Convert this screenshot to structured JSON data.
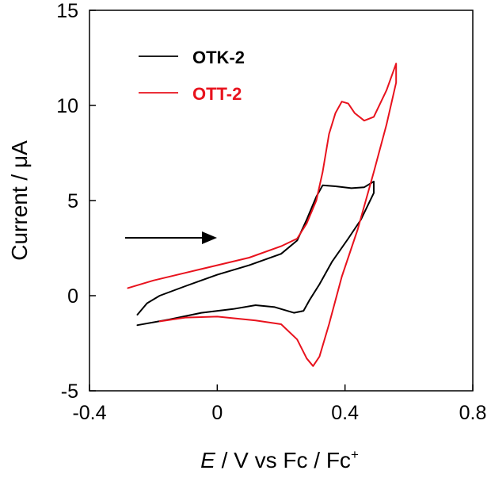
{
  "chart_data": {
    "type": "line",
    "title": "",
    "xlabel": {
      "italic": "E",
      "rest": " / V vs  Fc / Fc",
      "sup": "+"
    },
    "ylabel": "Current / μA",
    "xlim": [
      -0.4,
      0.8
    ],
    "ylim": [
      -5,
      15
    ],
    "xticks": [
      -0.4,
      0,
      0.4,
      0.8
    ],
    "xtick_labels": [
      "-0.4",
      "0",
      "0.4",
      "0.8"
    ],
    "yticks": [
      -5,
      0,
      5,
      10,
      15
    ],
    "ytick_labels": [
      "-5",
      "0",
      "5",
      "10",
      "15"
    ],
    "grid": false,
    "legend_position": "top-left",
    "annotation": "arrow pointing right (scan direction)",
    "series": [
      {
        "name": "OTK-2",
        "color": "#000000",
        "points": [
          [
            -0.25,
            -1.0
          ],
          [
            -0.22,
            -0.4
          ],
          [
            -0.18,
            0.0
          ],
          [
            -0.1,
            0.5
          ],
          [
            0.0,
            1.1
          ],
          [
            0.1,
            1.6
          ],
          [
            0.2,
            2.2
          ],
          [
            0.25,
            2.9
          ],
          [
            0.28,
            4.0
          ],
          [
            0.31,
            5.2
          ],
          [
            0.33,
            5.8
          ],
          [
            0.37,
            5.75
          ],
          [
            0.42,
            5.65
          ],
          [
            0.46,
            5.7
          ],
          [
            0.49,
            6.0
          ],
          [
            0.49,
            5.4
          ],
          [
            0.45,
            4.0
          ],
          [
            0.41,
            3.0
          ],
          [
            0.36,
            1.8
          ],
          [
            0.32,
            0.6
          ],
          [
            0.29,
            -0.2
          ],
          [
            0.27,
            -0.8
          ],
          [
            0.24,
            -0.9
          ],
          [
            0.18,
            -0.6
          ],
          [
            0.12,
            -0.5
          ],
          [
            0.05,
            -0.7
          ],
          [
            -0.05,
            -0.9
          ],
          [
            -0.15,
            -1.25
          ],
          [
            -0.25,
            -1.55
          ]
        ]
      },
      {
        "name": "OTT-2",
        "color": "#e8121d",
        "points": [
          [
            -0.28,
            0.4
          ],
          [
            -0.2,
            0.8
          ],
          [
            -0.1,
            1.2
          ],
          [
            0.0,
            1.6
          ],
          [
            0.1,
            2.0
          ],
          [
            0.2,
            2.6
          ],
          [
            0.25,
            3.0
          ],
          [
            0.28,
            3.8
          ],
          [
            0.31,
            5.0
          ],
          [
            0.33,
            6.5
          ],
          [
            0.35,
            8.5
          ],
          [
            0.37,
            9.6
          ],
          [
            0.39,
            10.2
          ],
          [
            0.41,
            10.1
          ],
          [
            0.43,
            9.6
          ],
          [
            0.46,
            9.2
          ],
          [
            0.49,
            9.4
          ],
          [
            0.53,
            10.8
          ],
          [
            0.56,
            12.2
          ],
          [
            0.56,
            11.2
          ],
          [
            0.53,
            9.0
          ],
          [
            0.49,
            6.5
          ],
          [
            0.44,
            3.5
          ],
          [
            0.39,
            1.0
          ],
          [
            0.35,
            -1.5
          ],
          [
            0.32,
            -3.2
          ],
          [
            0.3,
            -3.7
          ],
          [
            0.28,
            -3.3
          ],
          [
            0.25,
            -2.3
          ],
          [
            0.2,
            -1.5
          ],
          [
            0.12,
            -1.3
          ],
          [
            0.0,
            -1.1
          ],
          [
            -0.1,
            -1.15
          ],
          [
            -0.18,
            -1.35
          ]
        ]
      }
    ]
  }
}
